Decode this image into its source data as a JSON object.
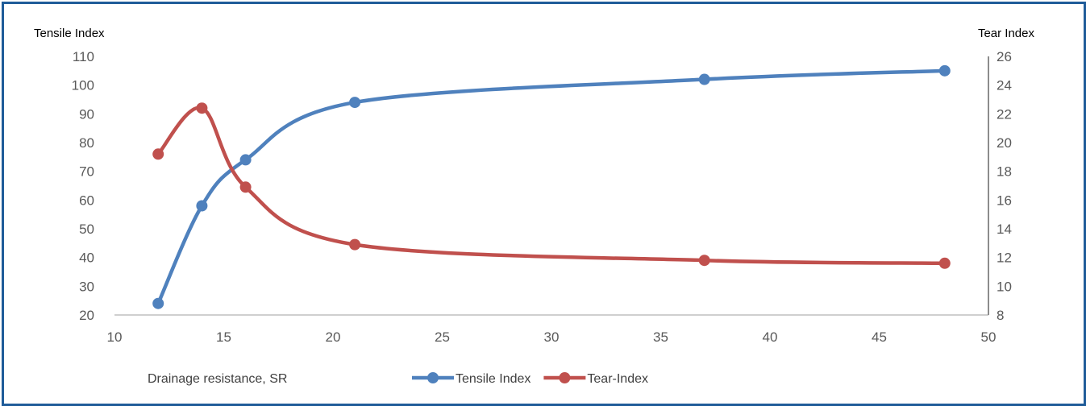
{
  "chart_data": {
    "type": "line",
    "xlabel": "Drainage resistance, SR",
    "ylabel_left": "Tensile Index",
    "ylabel_right": "Tear  Index",
    "xlim": [
      10,
      50
    ],
    "xticks": [
      10,
      15,
      20,
      25,
      30,
      35,
      40,
      45,
      50
    ],
    "ylim_left": [
      20,
      110
    ],
    "yticks_left": [
      20,
      30,
      40,
      50,
      60,
      70,
      80,
      90,
      100,
      110
    ],
    "ylim_right": [
      8,
      26
    ],
    "yticks_right": [
      8,
      10,
      12,
      14,
      16,
      18,
      20,
      22,
      24,
      26
    ],
    "grid": false,
    "smooth": true,
    "legend_position": "bottom",
    "series": [
      {
        "name": "Tensile Index",
        "axis": "left",
        "color": "#4f81bd",
        "x": [
          12,
          14,
          16,
          21,
          37,
          48
        ],
        "y": [
          24,
          58,
          74,
          94,
          102,
          105
        ]
      },
      {
        "name": "Tear-Index",
        "axis": "right",
        "color": "#c0504d",
        "x": [
          12,
          14,
          16,
          21,
          37,
          48
        ],
        "y": [
          19.2,
          22.4,
          16.9,
          12.9,
          11.8,
          11.6
        ]
      }
    ]
  }
}
